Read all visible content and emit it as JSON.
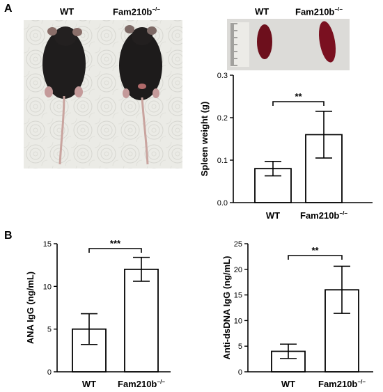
{
  "figure": {
    "panel_a_letter": "A",
    "panel_b_letter": "B",
    "mouse_photo": {
      "label_wt": "WT",
      "label_ko": "Fam210b",
      "label_ko_sup": "−/−"
    },
    "spleen_photo": {
      "label_wt": "WT",
      "label_ko": "Fam210b",
      "label_ko_sup": "−/−"
    }
  },
  "colors": {
    "bar_fill": "#ffffff",
    "bar_stroke": "#000000",
    "paper_towel": "#e9e9e4",
    "mouse_fur": "#1e1c1c",
    "spleen": "#7a1020"
  },
  "chart_data": [
    {
      "id": "spleen",
      "type": "bar",
      "categories": [
        "WT",
        "Fam210b"
      ],
      "category_sup": [
        "",
        "−/−"
      ],
      "values": [
        0.08,
        0.16
      ],
      "errors": [
        0.017,
        0.055
      ],
      "ylabel": "Spleen weight (g)",
      "ylim": [
        0,
        0.3
      ],
      "yticks": [
        0.0,
        0.1,
        0.2,
        0.3
      ],
      "ytick_labels": [
        "0.0",
        "0.1",
        "0.2",
        "0.3"
      ],
      "significance": "**"
    },
    {
      "id": "ana",
      "type": "bar",
      "categories": [
        "WT",
        "Fam210b"
      ],
      "category_sup": [
        "",
        "−/−"
      ],
      "values": [
        5.0,
        12.0
      ],
      "errors": [
        1.8,
        1.4
      ],
      "ylabel": "ANA IgG (ng/mL)",
      "ylim": [
        0,
        15
      ],
      "yticks": [
        0,
        5,
        10,
        15
      ],
      "ytick_labels": [
        "0",
        "5",
        "10",
        "15"
      ],
      "significance": "***"
    },
    {
      "id": "dsdna",
      "type": "bar",
      "categories": [
        "WT",
        "Fam210b"
      ],
      "category_sup": [
        "",
        "−/−"
      ],
      "values": [
        4.0,
        16.0
      ],
      "errors": [
        1.4,
        4.6
      ],
      "ylabel": "Anti-dsDNA IgG (ng/mL)",
      "ylim": [
        0,
        25
      ],
      "yticks": [
        0,
        5,
        10,
        15,
        20,
        25
      ],
      "ytick_labels": [
        "0",
        "5",
        "10",
        "15",
        "20",
        "25"
      ],
      "significance": "**"
    }
  ]
}
